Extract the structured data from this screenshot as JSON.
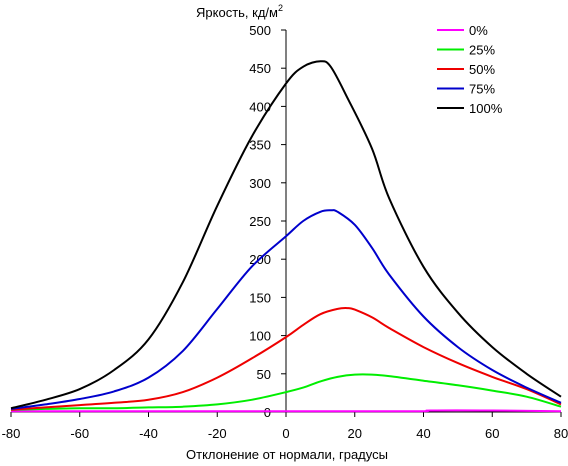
{
  "chart_data": {
    "type": "line",
    "ylabel": "Яркость, кд/м",
    "ylabel_superscript": "2",
    "xlabel": "Отклонение от нормали, градусы",
    "xlim": [
      -80,
      80
    ],
    "ylim": [
      0,
      500
    ],
    "x_ticks": [
      -80,
      -60,
      -40,
      -20,
      0,
      20,
      40,
      60,
      80
    ],
    "y_ticks": [
      0,
      50,
      100,
      150,
      200,
      250,
      300,
      350,
      400,
      450,
      500
    ],
    "grid": false,
    "legend_position": "top-right",
    "series": [
      {
        "name": "0%",
        "color": "#ff00ff",
        "points": [
          [
            -80,
            1
          ],
          [
            -60,
            1
          ],
          [
            -40,
            1
          ],
          [
            -20,
            1
          ],
          [
            0,
            1
          ],
          [
            20,
            1
          ],
          [
            40,
            1
          ],
          [
            42,
            2
          ],
          [
            60,
            2
          ],
          [
            80,
            1
          ]
        ]
      },
      {
        "name": "25%",
        "color": "#00ee00",
        "points": [
          [
            -80,
            3
          ],
          [
            -70,
            4
          ],
          [
            -60,
            5
          ],
          [
            -50,
            5
          ],
          [
            -40,
            6
          ],
          [
            -30,
            7
          ],
          [
            -20,
            10
          ],
          [
            -10,
            16
          ],
          [
            0,
            26
          ],
          [
            5,
            32
          ],
          [
            10,
            40
          ],
          [
            15,
            46
          ],
          [
            20,
            49
          ],
          [
            25,
            49
          ],
          [
            30,
            47
          ],
          [
            40,
            41
          ],
          [
            50,
            35
          ],
          [
            60,
            28
          ],
          [
            70,
            20
          ],
          [
            80,
            7
          ]
        ]
      },
      {
        "name": "50%",
        "color": "#ee0000",
        "points": [
          [
            -80,
            3
          ],
          [
            -70,
            6
          ],
          [
            -60,
            9
          ],
          [
            -50,
            12
          ],
          [
            -40,
            16
          ],
          [
            -30,
            26
          ],
          [
            -20,
            45
          ],
          [
            -10,
            70
          ],
          [
            0,
            98
          ],
          [
            5,
            114
          ],
          [
            10,
            128
          ],
          [
            15,
            135
          ],
          [
            18,
            136
          ],
          [
            20,
            134
          ],
          [
            25,
            124
          ],
          [
            30,
            110
          ],
          [
            40,
            85
          ],
          [
            50,
            64
          ],
          [
            60,
            46
          ],
          [
            70,
            30
          ],
          [
            80,
            10
          ]
        ]
      },
      {
        "name": "75%",
        "color": "#0000cc",
        "points": [
          [
            -80,
            4
          ],
          [
            -70,
            10
          ],
          [
            -60,
            17
          ],
          [
            -50,
            27
          ],
          [
            -40,
            45
          ],
          [
            -30,
            80
          ],
          [
            -20,
            135
          ],
          [
            -10,
            190
          ],
          [
            0,
            230
          ],
          [
            5,
            250
          ],
          [
            10,
            262
          ],
          [
            13,
            264
          ],
          [
            15,
            262
          ],
          [
            20,
            245
          ],
          [
            25,
            215
          ],
          [
            30,
            180
          ],
          [
            40,
            125
          ],
          [
            50,
            85
          ],
          [
            60,
            55
          ],
          [
            70,
            32
          ],
          [
            80,
            12
          ]
        ]
      },
      {
        "name": "100%",
        "color": "#000000",
        "points": [
          [
            -80,
            5
          ],
          [
            -70,
            16
          ],
          [
            -60,
            30
          ],
          [
            -50,
            55
          ],
          [
            -40,
            95
          ],
          [
            -30,
            170
          ],
          [
            -20,
            270
          ],
          [
            -10,
            360
          ],
          [
            0,
            430
          ],
          [
            5,
            452
          ],
          [
            10,
            459
          ],
          [
            13,
            452
          ],
          [
            18,
            410
          ],
          [
            25,
            345
          ],
          [
            30,
            280
          ],
          [
            40,
            190
          ],
          [
            50,
            130
          ],
          [
            60,
            85
          ],
          [
            70,
            50
          ],
          [
            80,
            20
          ]
        ]
      }
    ]
  }
}
